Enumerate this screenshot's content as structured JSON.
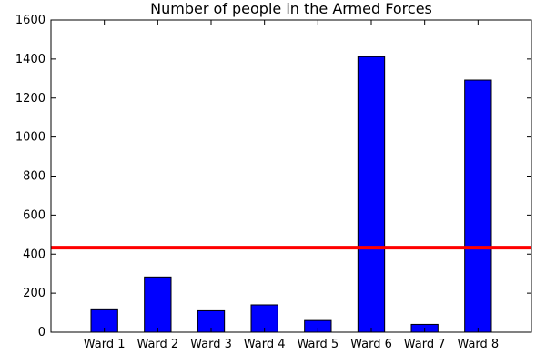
{
  "chart_data": {
    "type": "bar",
    "title": "Number of people in the Armed Forces",
    "xlabel": "",
    "ylabel": "",
    "categories": [
      "Ward 1",
      "Ward 2",
      "Ward 3",
      "Ward 4",
      "Ward 5",
      "Ward 6",
      "Ward 7",
      "Ward 8"
    ],
    "values": [
      115,
      283,
      110,
      140,
      60,
      1412,
      40,
      1292
    ],
    "ylim": [
      0,
      1600
    ],
    "yticks": [
      0,
      200,
      400,
      600,
      800,
      1000,
      1200,
      1400,
      1600
    ],
    "grid": false,
    "reference_line": {
      "value": 433
    },
    "colors": {
      "bar": "#0000ff",
      "bar_edge": "#000000",
      "reference_line": "#ff0000"
    }
  }
}
